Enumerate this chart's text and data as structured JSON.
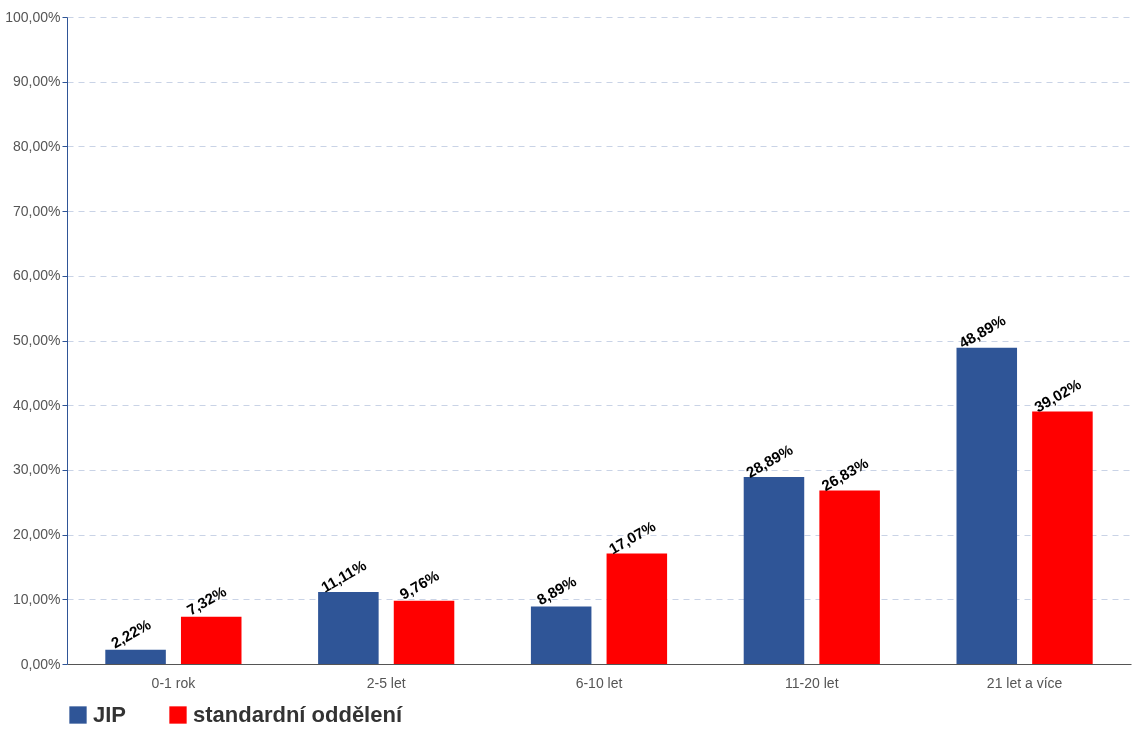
{
  "chart_data": {
    "type": "bar",
    "categories": [
      "0-1 rok",
      "2-5 let",
      "6-10 let",
      "11-20 let",
      "21 let a více"
    ],
    "series": [
      {
        "name": "JIP",
        "color": "#2f5597",
        "values": [
          2.22,
          11.11,
          8.89,
          28.89,
          48.89
        ],
        "value_labels": [
          "2,22%",
          "11,11%",
          "8,89%",
          "28,89%",
          "48,89%"
        ]
      },
      {
        "name": "standardní oddělení",
        "color": "#ff0000",
        "values": [
          7.32,
          9.76,
          17.07,
          26.83,
          39.02
        ],
        "value_labels": [
          "7,32%",
          "9,76%",
          "17,07%",
          "26,83%",
          "39,02%"
        ]
      }
    ],
    "ylim": [
      0,
      100
    ],
    "yticks": [
      {
        "value": 0,
        "label": "0,00%"
      },
      {
        "value": 10,
        "label": "10,00%"
      },
      {
        "value": 20,
        "label": "20,00%"
      },
      {
        "value": 30,
        "label": "30,00%"
      },
      {
        "value": 40,
        "label": "40,00%"
      },
      {
        "value": 50,
        "label": "50,00%"
      },
      {
        "value": 60,
        "label": "60,00%"
      },
      {
        "value": 70,
        "label": "70,00%"
      },
      {
        "value": 80,
        "label": "80,00%"
      },
      {
        "value": 90,
        "label": "90,00%"
      },
      {
        "value": 100,
        "label": "100,00%"
      }
    ],
    "grid": "y",
    "legend": "bottom"
  }
}
